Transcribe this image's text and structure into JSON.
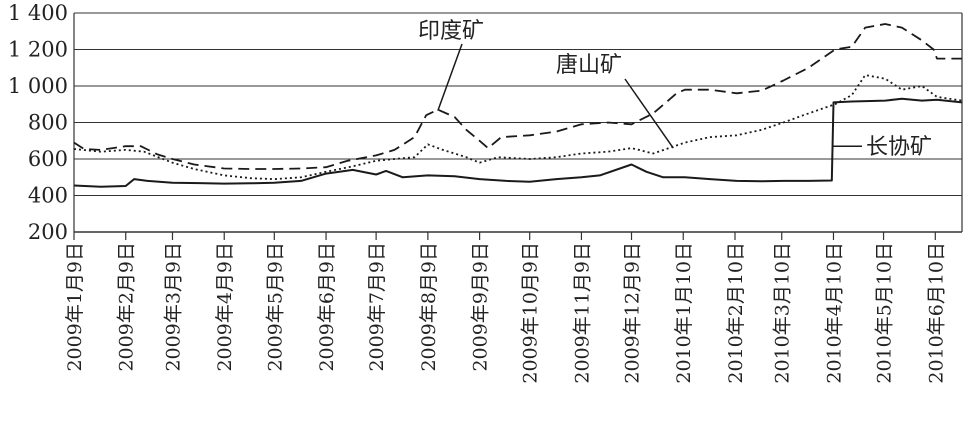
{
  "chart_data": {
    "type": "line",
    "title": "",
    "xlabel": "",
    "ylabel": "",
    "ylim": [
      200,
      1400
    ],
    "yticks": [
      200,
      400,
      600,
      800,
      1000,
      1200,
      1400
    ],
    "ytick_labels": [
      "200",
      "400",
      "600",
      "800",
      "1 000",
      "1 200",
      "1 400"
    ],
    "grid": "horizontal",
    "legend": "none",
    "x_start": "2009-01-09",
    "x_end": "2010-06-25",
    "categories": [
      "2009-01-09",
      "2009-02-09",
      "2009-03-09",
      "2009-04-09",
      "2009-05-09",
      "2009-06-09",
      "2009-07-09",
      "2009-08-09",
      "2009-09-09",
      "2009-10-09",
      "2009-11-09",
      "2009-12-09",
      "2010-01-09",
      "2010-02-09",
      "2010-03-09",
      "2010-04-09",
      "2010-05-09",
      "2010-06-09"
    ],
    "category_labels": [
      "2009年1月9日",
      "2009年2月9日",
      "2009年3月9日",
      "2009年4月9日",
      "2009年5月9日",
      "2009年6月9日",
      "2009年7月9日",
      "2009年8月9日",
      "2009年9月9日",
      "2009年10月9日",
      "2009年11月9日",
      "2009年12月9日",
      "2010年1月10日",
      "2010年2月10日",
      "2010年3月10日",
      "2010年4月10日",
      "2010年5月10日",
      "2010年6月10日"
    ],
    "series": [
      {
        "name": "印度矿",
        "style": "dashed",
        "points": [
          [
            "2009-01-09",
            690
          ],
          [
            "2009-01-15",
            655
          ],
          [
            "2009-01-25",
            650
          ],
          [
            "2009-02-09",
            670
          ],
          [
            "2009-02-18",
            670
          ],
          [
            "2009-02-28",
            625
          ],
          [
            "2009-03-09",
            600
          ],
          [
            "2009-03-22",
            570
          ],
          [
            "2009-04-09",
            548
          ],
          [
            "2009-04-25",
            545
          ],
          [
            "2009-05-09",
            545
          ],
          [
            "2009-05-25",
            548
          ],
          [
            "2009-06-09",
            555
          ],
          [
            "2009-06-22",
            590
          ],
          [
            "2009-07-09",
            620
          ],
          [
            "2009-07-20",
            650
          ],
          [
            "2009-08-01",
            720
          ],
          [
            "2009-08-08",
            840
          ],
          [
            "2009-08-15",
            870
          ],
          [
            "2009-08-25",
            830
          ],
          [
            "2009-09-01",
            760
          ],
          [
            "2009-09-09",
            700
          ],
          [
            "2009-09-14",
            660
          ],
          [
            "2009-09-22",
            720
          ],
          [
            "2009-10-09",
            730
          ],
          [
            "2009-10-25",
            750
          ],
          [
            "2009-11-09",
            790
          ],
          [
            "2009-11-25",
            800
          ],
          [
            "2009-12-09",
            790
          ],
          [
            "2009-12-22",
            850
          ],
          [
            "2010-01-05",
            960
          ],
          [
            "2010-01-10",
            980
          ],
          [
            "2010-01-25",
            980
          ],
          [
            "2010-02-10",
            960
          ],
          [
            "2010-02-25",
            975
          ],
          [
            "2010-03-10",
            1030
          ],
          [
            "2010-03-25",
            1100
          ],
          [
            "2010-04-10",
            1200
          ],
          [
            "2010-04-20",
            1215
          ],
          [
            "2010-04-28",
            1320
          ],
          [
            "2010-05-10",
            1340
          ],
          [
            "2010-05-20",
            1320
          ],
          [
            "2010-06-01",
            1250
          ],
          [
            "2010-06-08",
            1200
          ],
          [
            "2010-06-10",
            1150
          ],
          [
            "2010-06-25",
            1150
          ]
        ]
      },
      {
        "name": "唐山矿",
        "style": "dotted",
        "points": [
          [
            "2009-01-09",
            655
          ],
          [
            "2009-01-25",
            640
          ],
          [
            "2009-02-09",
            650
          ],
          [
            "2009-02-20",
            640
          ],
          [
            "2009-03-09",
            580
          ],
          [
            "2009-03-22",
            545
          ],
          [
            "2009-04-09",
            510
          ],
          [
            "2009-04-25",
            495
          ],
          [
            "2009-05-09",
            490
          ],
          [
            "2009-05-25",
            500
          ],
          [
            "2009-06-09",
            530
          ],
          [
            "2009-06-25",
            560
          ],
          [
            "2009-07-09",
            590
          ],
          [
            "2009-07-20",
            600
          ],
          [
            "2009-08-01",
            610
          ],
          [
            "2009-08-09",
            680
          ],
          [
            "2009-08-18",
            650
          ],
          [
            "2009-09-01",
            610
          ],
          [
            "2009-09-09",
            580
          ],
          [
            "2009-09-20",
            610
          ],
          [
            "2009-10-09",
            600
          ],
          [
            "2009-10-25",
            610
          ],
          [
            "2009-11-09",
            630
          ],
          [
            "2009-11-25",
            640
          ],
          [
            "2009-12-09",
            660
          ],
          [
            "2009-12-22",
            630
          ],
          [
            "2010-01-10",
            690
          ],
          [
            "2010-01-25",
            720
          ],
          [
            "2010-02-10",
            730
          ],
          [
            "2010-02-25",
            760
          ],
          [
            "2010-03-10",
            800
          ],
          [
            "2010-03-22",
            840
          ],
          [
            "2010-04-10",
            900
          ],
          [
            "2010-04-20",
            950
          ],
          [
            "2010-04-28",
            1060
          ],
          [
            "2010-05-10",
            1040
          ],
          [
            "2010-05-20",
            980
          ],
          [
            "2010-06-01",
            1000
          ],
          [
            "2010-06-10",
            940
          ],
          [
            "2010-06-25",
            920
          ]
        ]
      },
      {
        "name": "长协矿",
        "style": "solid",
        "points": [
          [
            "2009-01-09",
            455
          ],
          [
            "2009-01-25",
            448
          ],
          [
            "2009-02-09",
            452
          ],
          [
            "2009-02-14",
            490
          ],
          [
            "2009-02-22",
            480
          ],
          [
            "2009-03-09",
            470
          ],
          [
            "2009-03-25",
            468
          ],
          [
            "2009-04-09",
            465
          ],
          [
            "2009-04-25",
            467
          ],
          [
            "2009-05-09",
            470
          ],
          [
            "2009-05-25",
            480
          ],
          [
            "2009-06-09",
            520
          ],
          [
            "2009-06-25",
            540
          ],
          [
            "2009-07-09",
            515
          ],
          [
            "2009-07-15",
            535
          ],
          [
            "2009-07-25",
            500
          ],
          [
            "2009-08-09",
            510
          ],
          [
            "2009-08-25",
            505
          ],
          [
            "2009-09-09",
            490
          ],
          [
            "2009-09-25",
            480
          ],
          [
            "2009-10-09",
            475
          ],
          [
            "2009-10-25",
            490
          ],
          [
            "2009-11-09",
            500
          ],
          [
            "2009-11-20",
            510
          ],
          [
            "2009-12-09",
            570
          ],
          [
            "2009-12-18",
            530
          ],
          [
            "2009-12-28",
            500
          ],
          [
            "2010-01-10",
            500
          ],
          [
            "2010-01-25",
            490
          ],
          [
            "2010-02-10",
            480
          ],
          [
            "2010-02-25",
            478
          ],
          [
            "2010-03-10",
            480
          ],
          [
            "2010-03-25",
            480
          ],
          [
            "2010-04-08",
            482
          ],
          [
            "2010-04-09",
            910
          ],
          [
            "2010-04-20",
            915
          ],
          [
            "2010-05-10",
            920
          ],
          [
            "2010-05-20",
            930
          ],
          [
            "2010-06-01",
            920
          ],
          [
            "2010-06-10",
            925
          ],
          [
            "2010-06-25",
            910
          ]
        ]
      }
    ],
    "annotations": [
      {
        "text": "印度矿",
        "series": "印度矿",
        "point_at": [
          "2009-08-15",
          865
        ]
      },
      {
        "text": "唐山矿",
        "series": "唐山矿",
        "point_at": [
          "2010-01-03",
          660
        ]
      },
      {
        "text": "长协矿",
        "series": "长协矿",
        "point_at": [
          "2010-04-09",
          670
        ]
      }
    ]
  }
}
